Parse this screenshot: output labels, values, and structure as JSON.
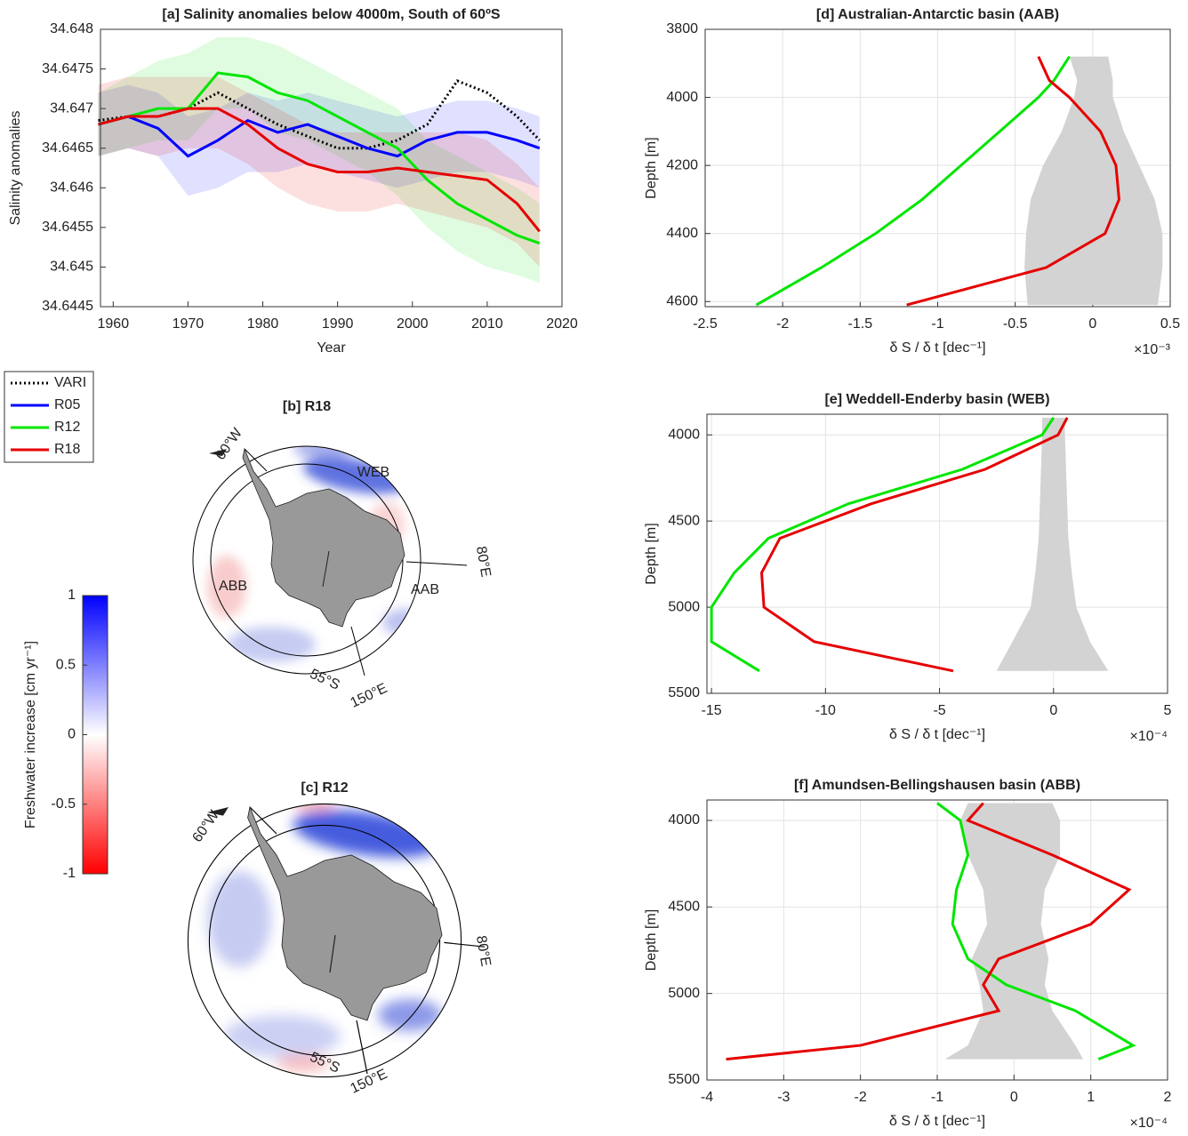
{
  "chart_data": [
    {
      "type": "line",
      "title": "[a] Salinity anomalies below 4000m, South of 60ºS",
      "xlabel": "Year",
      "ylabel": "Salinity anomalies",
      "x": [
        1958,
        1962,
        1966,
        1970,
        1974,
        1978,
        1982,
        1986,
        1990,
        1994,
        1998,
        2002,
        2006,
        2010,
        2014,
        2017
      ],
      "xlim": [
        1958.3,
        2020
      ],
      "xticks": [
        1960,
        1970,
        1980,
        1990,
        2000,
        2010,
        2020
      ],
      "ylim": [
        34.6445,
        34.648
      ],
      "yticks": [
        34.6445,
        34.645,
        34.6455,
        34.646,
        34.6465,
        34.647,
        34.6475,
        34.648
      ],
      "grid": false,
      "legend": "outside",
      "series": [
        {
          "name": "VARI",
          "color": "#000000",
          "linestyle": "dotted",
          "values": [
            34.64685,
            34.6469,
            34.6469,
            34.647,
            34.6472,
            34.647,
            34.6468,
            34.64665,
            34.6465,
            34.6465,
            34.6466,
            34.6468,
            34.64735,
            34.6472,
            34.6469,
            34.6466
          ]
        },
        {
          "name": "R05",
          "color": "#0000ff",
          "values": [
            34.6468,
            34.6469,
            34.64675,
            34.6464,
            34.6466,
            34.64685,
            34.6467,
            34.6468,
            34.64665,
            34.6465,
            34.6464,
            34.6466,
            34.6467,
            34.6467,
            34.6466,
            34.6465
          ],
          "upper": [
            34.6472,
            34.6473,
            34.6472,
            34.6469,
            34.647,
            34.6472,
            34.6471,
            34.6472,
            34.6471,
            34.647,
            34.6469,
            34.647,
            34.6471,
            34.6471,
            34.647,
            34.6469
          ],
          "lower": [
            34.6464,
            34.6465,
            34.6464,
            34.6459,
            34.646,
            34.6462,
            34.6462,
            34.6463,
            34.6462,
            34.6461,
            34.646,
            34.6461,
            34.6462,
            34.6462,
            34.6461,
            34.646
          ]
        },
        {
          "name": "R12",
          "color": "#00e600",
          "values": [
            34.6468,
            34.6469,
            34.647,
            34.647,
            34.64745,
            34.6474,
            34.6472,
            34.6471,
            34.6469,
            34.6467,
            34.6465,
            34.6461,
            34.6458,
            34.6456,
            34.6454,
            34.6453
          ],
          "upper": [
            34.6472,
            34.6474,
            34.6476,
            34.6477,
            34.6479,
            34.6479,
            34.6478,
            34.6476,
            34.6474,
            34.6472,
            34.647,
            34.6466,
            34.6464,
            34.6462,
            34.646,
            34.6458
          ],
          "lower": [
            34.6464,
            34.6465,
            34.6466,
            34.6466,
            34.647,
            34.647,
            34.6467,
            34.6466,
            34.6464,
            34.6462,
            34.6459,
            34.6455,
            34.6452,
            34.645,
            34.6449,
            34.6448
          ]
        },
        {
          "name": "R18",
          "color": "#e60000",
          "values": [
            34.6468,
            34.6469,
            34.6469,
            34.647,
            34.647,
            34.6468,
            34.6465,
            34.6463,
            34.6462,
            34.6462,
            34.64625,
            34.6462,
            34.64615,
            34.6461,
            34.6458,
            34.64545
          ],
          "upper": [
            34.6473,
            34.6474,
            34.6474,
            34.6474,
            34.6474,
            34.6472,
            34.647,
            34.6468,
            34.6467,
            34.6467,
            34.6467,
            34.6467,
            34.6467,
            34.6466,
            34.6463,
            34.646
          ],
          "lower": [
            34.6464,
            34.6465,
            34.6464,
            34.6465,
            34.6465,
            34.6463,
            34.646,
            34.6458,
            34.6457,
            34.6457,
            34.6458,
            34.6457,
            34.6456,
            34.6455,
            34.6453,
            34.645
          ]
        }
      ]
    },
    {
      "type": "colorbar",
      "ylabel": "Freshwater increase [cm yr⁻¹]",
      "ylim": [
        -1,
        1
      ],
      "yticks": [
        -1,
        -0.5,
        0,
        0.5,
        1
      ],
      "colors": [
        "#ff0000",
        "#ffffff",
        "#0000ff"
      ]
    },
    {
      "type": "profile",
      "title": "[d] Australian-Antarctic basin (AAB)",
      "xlabel": "δ S / δ t [dec⁻¹]",
      "ylabel": "Depth [m]",
      "x_multiplier": "×10⁻³",
      "xlim": [
        -2.5,
        0.5
      ],
      "xticks": [
        -2.5,
        -2,
        -1.5,
        -1,
        -0.5,
        0,
        0.5
      ],
      "ylim": [
        3800,
        4615
      ],
      "yticks": [
        3800,
        4000,
        4200,
        4400,
        4600
      ],
      "y_reversed": true,
      "grid": true,
      "y": [
        3880,
        3950,
        4000,
        4100,
        4200,
        4300,
        4400,
        4500,
        4610
      ],
      "envelope": {
        "color": "#d3d3d3",
        "lower": [
          -0.15,
          -0.1,
          -0.12,
          -0.2,
          -0.32,
          -0.4,
          -0.43,
          -0.44,
          -0.42
        ],
        "upper": [
          0.1,
          0.13,
          0.13,
          0.2,
          0.3,
          0.4,
          0.45,
          0.45,
          0.42
        ]
      },
      "series": [
        {
          "color": "#00e600",
          "values": [
            -0.15,
            -0.25,
            -0.35,
            -0.6,
            -0.85,
            -1.1,
            -1.4,
            -1.75,
            -2.17
          ]
        },
        {
          "color": "#e60000",
          "values": [
            -0.35,
            -0.28,
            -0.15,
            0.05,
            0.15,
            0.17,
            0.08,
            -0.3,
            -1.2
          ]
        }
      ]
    },
    {
      "type": "profile",
      "title": "[e] Weddell-Enderby basin (WEB)",
      "xlabel": "δ S / δ t [dec⁻¹]",
      "ylabel": "Depth [m]",
      "x_multiplier": "×10⁻⁴",
      "xlim": [
        -15.2,
        5
      ],
      "xticks": [
        -15,
        -10,
        -5,
        0,
        5
      ],
      "ylim": [
        3880,
        5500
      ],
      "yticks": [
        4000,
        4500,
        5000,
        5500
      ],
      "y_reversed": true,
      "grid": true,
      "y": [
        3900,
        4000,
        4200,
        4400,
        4600,
        4800,
        5000,
        5200,
        5370
      ],
      "envelope": {
        "color": "#d3d3d3",
        "lower": [
          -0.5,
          -0.5,
          -0.55,
          -0.6,
          -0.65,
          -0.8,
          -1,
          -1.8,
          -2.5
        ],
        "upper": [
          0.5,
          0.5,
          0.55,
          0.6,
          0.65,
          0.8,
          1,
          1.6,
          2.4
        ]
      },
      "series": [
        {
          "color": "#00e600",
          "values": [
            0,
            -0.5,
            -4,
            -9,
            -12.5,
            -14,
            -15,
            -15,
            -12.9
          ]
        },
        {
          "color": "#e60000",
          "values": [
            0.6,
            0.2,
            -3,
            -8,
            -12,
            -12.8,
            -12.7,
            -10.5,
            -4.4
          ]
        }
      ]
    },
    {
      "type": "profile",
      "title": "[f] Amundsen-Bellingshausen basin (ABB)",
      "xlabel": "δ S / δ t [dec⁻¹]",
      "ylabel": "Depth [m]",
      "x_multiplier": "×10⁻⁴",
      "xlim": [
        -4,
        2
      ],
      "xticks": [
        -4,
        -3,
        -2,
        -1,
        0,
        1,
        2
      ],
      "ylim": [
        3882,
        5500
      ],
      "yticks": [
        4000,
        4500,
        5000,
        5500
      ],
      "y_reversed": true,
      "grid": true,
      "y": [
        3900,
        4000,
        4200,
        4400,
        4600,
        4800,
        4950,
        5100,
        5300,
        5380
      ],
      "envelope": {
        "color": "#d3d3d3",
        "lower": [
          -0.6,
          -0.7,
          -0.6,
          -0.4,
          -0.35,
          -0.55,
          -0.45,
          -0.4,
          -0.6,
          -0.9
        ],
        "upper": [
          0.5,
          0.6,
          0.6,
          0.4,
          0.35,
          0.45,
          0.4,
          0.5,
          0.8,
          0.9
        ]
      },
      "series": [
        {
          "color": "#00e600",
          "values": [
            -1,
            -0.7,
            -0.6,
            -0.75,
            -0.8,
            -0.6,
            -0.1,
            0.8,
            1.55,
            1.1
          ]
        },
        {
          "color": "#e60000",
          "values": [
            -0.4,
            -0.6,
            0.5,
            1.5,
            1,
            -0.2,
            -0.4,
            -0.2,
            -2,
            -3.75
          ]
        }
      ]
    }
  ],
  "maps": [
    {
      "title": "[b] R18",
      "labels": [
        "60°W",
        "WEB",
        "ABB",
        "AAB",
        "80°E",
        "55°S",
        "150°E"
      ]
    },
    {
      "title": "[c] R12",
      "labels": [
        "60°W",
        "80°E",
        "55°S",
        "150°E"
      ]
    }
  ]
}
